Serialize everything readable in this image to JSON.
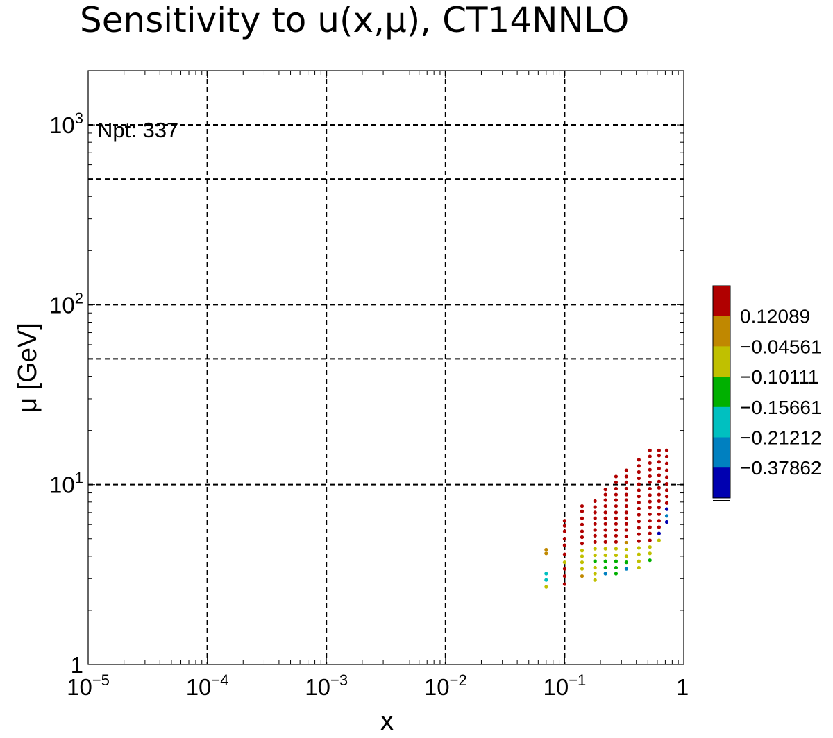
{
  "chart_data": {
    "type": "scatter",
    "title": "Sensitivity to u(x,μ), CT14NNLO",
    "xlabel": "x",
    "ylabel": "μ [GeV]",
    "x_scale": "log",
    "y_scale": "log",
    "xlim": [
      1e-05,
      1
    ],
    "ylim": [
      1,
      2000
    ],
    "x_ticks": [
      {
        "base": "10",
        "exp": "−5",
        "value": 1e-05
      },
      {
        "base": "10",
        "exp": "−4",
        "value": 0.0001
      },
      {
        "base": "10",
        "exp": "−3",
        "value": 0.001
      },
      {
        "base": "10",
        "exp": "−2",
        "value": 0.01
      },
      {
        "base": "10",
        "exp": "−1",
        "value": 0.1
      },
      {
        "base": "1",
        "exp": "",
        "value": 1
      }
    ],
    "y_ticks": [
      {
        "base": "1",
        "exp": "",
        "value": 1
      },
      {
        "base": "10",
        "exp": "1",
        "value": 10
      },
      {
        "base": "10",
        "exp": "2",
        "value": 100
      },
      {
        "base": "10",
        "exp": "3",
        "value": 1000
      }
    ],
    "grid": true,
    "annotation": "Npt: 337",
    "colorbar": {
      "labels": [
        "0.12089",
        "−0.04561",
        "−0.10111",
        "−0.15661",
        "−0.21212",
        "−0.37862"
      ],
      "colors": [
        "#b00000",
        "#c08800",
        "#c0c000",
        "#00b000",
        "#00c0c0",
        "#0080c0",
        "#0000b0"
      ]
    },
    "columns": [
      {
        "x": 0.07,
        "points": [
          [
            2.7,
            2
          ],
          [
            2.95,
            4
          ],
          [
            3.2,
            4
          ],
          [
            4.15,
            1
          ],
          [
            4.35,
            1
          ]
        ]
      },
      {
        "x": 0.1,
        "points": [
          [
            2.8,
            0
          ],
          [
            3.1,
            0
          ],
          [
            3.4,
            0
          ],
          [
            3.7,
            2
          ],
          [
            4.1,
            0
          ],
          [
            4.6,
            0
          ],
          [
            5.0,
            0
          ],
          [
            5.5,
            0
          ],
          [
            5.9,
            0
          ],
          [
            6.3,
            0
          ]
        ]
      },
      {
        "x": 0.14,
        "points": [
          [
            3.1,
            1
          ],
          [
            3.4,
            2
          ],
          [
            3.7,
            2
          ],
          [
            4.0,
            2
          ],
          [
            4.3,
            2
          ],
          [
            4.7,
            0
          ],
          [
            5.1,
            0
          ],
          [
            5.5,
            0
          ],
          [
            6.0,
            0
          ],
          [
            6.5,
            0
          ],
          [
            7.1,
            0
          ],
          [
            7.6,
            0
          ]
        ]
      },
      {
        "x": 0.18,
        "points": [
          [
            2.95,
            2
          ],
          [
            3.2,
            2
          ],
          [
            3.45,
            2
          ],
          [
            3.75,
            3
          ],
          [
            4.05,
            2
          ],
          [
            4.4,
            2
          ],
          [
            4.8,
            0
          ],
          [
            5.2,
            0
          ],
          [
            5.6,
            0
          ],
          [
            6.05,
            0
          ],
          [
            6.5,
            0
          ],
          [
            7.0,
            0
          ],
          [
            7.5,
            0
          ],
          [
            8.1,
            0
          ]
        ]
      },
      {
        "x": 0.22,
        "points": [
          [
            3.2,
            5
          ],
          [
            3.45,
            3
          ],
          [
            3.75,
            3
          ],
          [
            4.05,
            2
          ],
          [
            4.4,
            2
          ],
          [
            4.8,
            0
          ],
          [
            5.2,
            0
          ],
          [
            5.6,
            0
          ],
          [
            6.05,
            0
          ],
          [
            6.5,
            0
          ],
          [
            7.0,
            0
          ],
          [
            7.6,
            0
          ],
          [
            8.2,
            0
          ],
          [
            8.8,
            0
          ],
          [
            9.4,
            0
          ]
        ]
      },
      {
        "x": 0.27,
        "points": [
          [
            3.2,
            3
          ],
          [
            3.45,
            3
          ],
          [
            3.75,
            3
          ],
          [
            4.05,
            2
          ],
          [
            4.4,
            2
          ],
          [
            4.8,
            0
          ],
          [
            5.2,
            0
          ],
          [
            5.6,
            0
          ],
          [
            6.05,
            0
          ],
          [
            6.5,
            0
          ],
          [
            7.0,
            0
          ],
          [
            7.6,
            0
          ],
          [
            8.2,
            0
          ],
          [
            8.8,
            0
          ],
          [
            9.5,
            0
          ],
          [
            10.3,
            0
          ],
          [
            11.1,
            0
          ]
        ]
      },
      {
        "x": 0.33,
        "points": [
          [
            3.4,
            5
          ],
          [
            3.7,
            3
          ],
          [
            4.0,
            2
          ],
          [
            4.35,
            2
          ],
          [
            4.75,
            1
          ],
          [
            5.15,
            0
          ],
          [
            5.6,
            0
          ],
          [
            6.05,
            0
          ],
          [
            6.5,
            0
          ],
          [
            7.0,
            0
          ],
          [
            7.6,
            0
          ],
          [
            8.2,
            0
          ],
          [
            8.8,
            0
          ],
          [
            9.5,
            0
          ],
          [
            10.3,
            0
          ],
          [
            11.1,
            0
          ],
          [
            12.0,
            0
          ]
        ]
      },
      {
        "x": 0.42,
        "points": [
          [
            3.45,
            2
          ],
          [
            3.75,
            2
          ],
          [
            4.1,
            2
          ],
          [
            4.45,
            2
          ],
          [
            4.85,
            0
          ],
          [
            5.3,
            0
          ],
          [
            5.75,
            0
          ],
          [
            6.25,
            0
          ],
          [
            6.8,
            0
          ],
          [
            7.35,
            0
          ],
          [
            7.95,
            0
          ],
          [
            8.6,
            0
          ],
          [
            9.3,
            0
          ],
          [
            10.05,
            0
          ],
          [
            10.85,
            0
          ],
          [
            11.75,
            0
          ],
          [
            12.7,
            0
          ],
          [
            13.75,
            0
          ]
        ]
      },
      {
        "x": 0.52,
        "points": [
          [
            3.8,
            3
          ],
          [
            4.15,
            2
          ],
          [
            4.5,
            2
          ],
          [
            4.9,
            0
          ],
          [
            5.35,
            0
          ],
          [
            5.8,
            0
          ],
          [
            6.3,
            0
          ],
          [
            6.85,
            0
          ],
          [
            7.45,
            0
          ],
          [
            8.05,
            0
          ],
          [
            8.75,
            0
          ],
          [
            9.5,
            0
          ],
          [
            10.3,
            0
          ],
          [
            11.15,
            0
          ],
          [
            12.1,
            0
          ],
          [
            13.2,
            0
          ],
          [
            14.35,
            0
          ],
          [
            15.5,
            0
          ]
        ]
      },
      {
        "x": 0.62,
        "points": [
          [
            4.9,
            2
          ],
          [
            5.35,
            6
          ],
          [
            5.8,
            0
          ],
          [
            6.3,
            0
          ],
          [
            6.85,
            0
          ],
          [
            7.45,
            0
          ],
          [
            8.1,
            0
          ],
          [
            8.8,
            0
          ],
          [
            9.6,
            0
          ],
          [
            10.4,
            0
          ],
          [
            11.3,
            0
          ],
          [
            12.3,
            0
          ],
          [
            13.4,
            0
          ],
          [
            14.5,
            0
          ],
          [
            15.5,
            0
          ]
        ]
      },
      {
        "x": 0.72,
        "points": [
          [
            6.2,
            6
          ],
          [
            6.7,
            5
          ],
          [
            7.3,
            6
          ],
          [
            7.9,
            0
          ],
          [
            8.6,
            0
          ],
          [
            9.3,
            0
          ],
          [
            10.1,
            0
          ],
          [
            11.0,
            0
          ],
          [
            12.0,
            0
          ],
          [
            13.1,
            0
          ],
          [
            14.3,
            0
          ],
          [
            15.5,
            0
          ]
        ]
      }
    ]
  }
}
